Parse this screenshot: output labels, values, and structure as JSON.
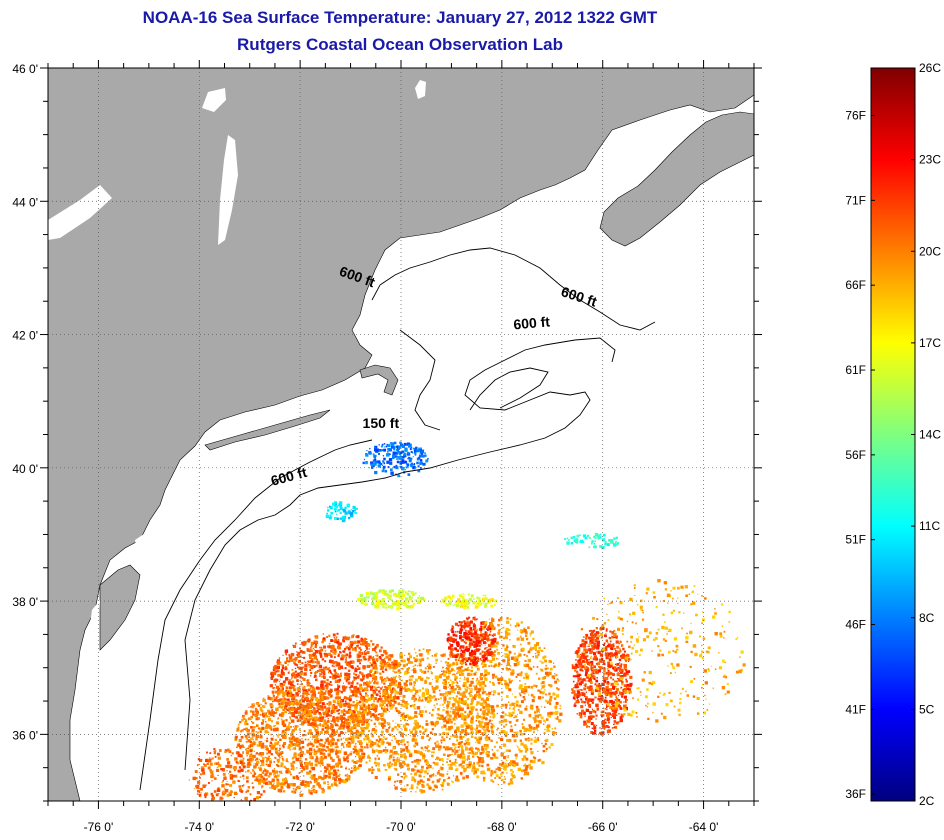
{
  "title": "NOAA-16 Sea Surface Temperature:  January 27, 2012 1322 GMT",
  "subtitle": "Rutgers Coastal Ocean Observation Lab",
  "map": {
    "lon_range": [
      -77,
      -63
    ],
    "lat_range": [
      35,
      46
    ],
    "lon_ticks": [
      {
        "value": -76,
        "label": "-76 0'"
      },
      {
        "value": -74,
        "label": "-74 0'"
      },
      {
        "value": -72,
        "label": "-72 0'"
      },
      {
        "value": -70,
        "label": "-70 0'"
      },
      {
        "value": -68,
        "label": "-68 0'"
      },
      {
        "value": -66,
        "label": "-66 0'"
      },
      {
        "value": -64,
        "label": "-64 0'"
      }
    ],
    "lat_ticks": [
      {
        "value": 46,
        "label": "46 0'"
      },
      {
        "value": 44,
        "label": "44 0'"
      },
      {
        "value": 42,
        "label": "42 0'"
      },
      {
        "value": 40,
        "label": "40 0'"
      },
      {
        "value": 38,
        "label": "38 0'"
      },
      {
        "value": 36,
        "label": "36 0'"
      }
    ],
    "grid": "dotted",
    "land_color": "#a9a9a9",
    "contour_labels": [
      {
        "text": "600 ft",
        "lon": -70.9,
        "lat": 42.8
      },
      {
        "text": "600 ft",
        "lon": -66.5,
        "lat": 42.5
      },
      {
        "text": "600 ft",
        "lon": -67.4,
        "lat": 42.1
      },
      {
        "text": "150 ft",
        "lon": -70.4,
        "lat": 40.6
      },
      {
        "text": "600 ft",
        "lon": -72.2,
        "lat": 39.8
      }
    ]
  },
  "colorbar": {
    "colors": [
      "#00007f",
      "#0000ff",
      "#007fff",
      "#00ffff",
      "#7fff7f",
      "#ffff00",
      "#ff7f00",
      "#ff0000",
      "#7f0000"
    ],
    "celsius_labels": [
      {
        "value": 2,
        "label": "2C"
      },
      {
        "value": 5,
        "label": "5C"
      },
      {
        "value": 8,
        "label": "8C"
      },
      {
        "value": 11,
        "label": "11C"
      },
      {
        "value": 14,
        "label": "14C"
      },
      {
        "value": 17,
        "label": "17C"
      },
      {
        "value": 20,
        "label": "20C"
      },
      {
        "value": 23,
        "label": "23C"
      },
      {
        "value": 26,
        "label": "26C"
      }
    ],
    "fahrenheit_labels": [
      {
        "value": 36,
        "label": "36F"
      },
      {
        "value": 41,
        "label": "41F"
      },
      {
        "value": 46,
        "label": "46F"
      },
      {
        "value": 51,
        "label": "51F"
      },
      {
        "value": 56,
        "label": "56F"
      },
      {
        "value": 61,
        "label": "61F"
      },
      {
        "value": 66,
        "label": "66F"
      },
      {
        "value": 71,
        "label": "71F"
      },
      {
        "value": 76,
        "label": "76F"
      }
    ]
  }
}
